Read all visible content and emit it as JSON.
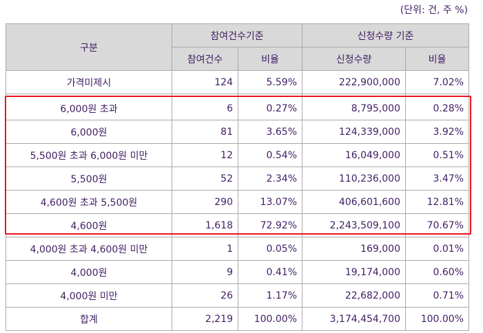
{
  "unit_note": "(단위: 건, 주 %)",
  "headers": {
    "category": "구분",
    "by_participants": "참여건수기준",
    "by_quantity": "신청수량 기준",
    "participants": "참여건수",
    "participants_ratio": "비율",
    "quantity": "신청수량",
    "quantity_ratio": "비율"
  },
  "rows": [
    {
      "category": "가격미제시",
      "participants": "124",
      "participants_ratio": "5.59%",
      "quantity": "222,900,000",
      "quantity_ratio": "7.02%"
    },
    {
      "category": "6,000원 초과",
      "participants": "6",
      "participants_ratio": "0.27%",
      "quantity": "8,795,000",
      "quantity_ratio": "0.28%"
    },
    {
      "category": "6,000원",
      "participants": "81",
      "participants_ratio": "3.65%",
      "quantity": "124,339,000",
      "quantity_ratio": "3.92%"
    },
    {
      "category": "5,500원 초과 6,000원 미만",
      "participants": "12",
      "participants_ratio": "0.54%",
      "quantity": "16,049,000",
      "quantity_ratio": "0.51%"
    },
    {
      "category": "5,500원",
      "participants": "52",
      "participants_ratio": "2.34%",
      "quantity": "110,236,000",
      "quantity_ratio": "3.47%"
    },
    {
      "category": "4,600원 초과 5,500원",
      "participants": "290",
      "participants_ratio": "13.07%",
      "quantity": "406,601,600",
      "quantity_ratio": "12.81%"
    },
    {
      "category": "4,600원",
      "participants": "1,618",
      "participants_ratio": "72.92%",
      "quantity": "2,243,509,100",
      "quantity_ratio": "70.67%"
    },
    {
      "category": "4,000원 초과 4,600원 미만",
      "participants": "1",
      "participants_ratio": "0.05%",
      "quantity": "169,000",
      "quantity_ratio": "0.01%"
    },
    {
      "category": "4,000원",
      "participants": "9",
      "participants_ratio": "0.41%",
      "quantity": "19,174,000",
      "quantity_ratio": "0.60%"
    },
    {
      "category": "4,000원 미만",
      "participants": "26",
      "participants_ratio": "1.17%",
      "quantity": "22,682,000",
      "quantity_ratio": "0.71%"
    },
    {
      "category": "합계",
      "participants": "2,219",
      "participants_ratio": "100.00%",
      "quantity": "3,174,454,700",
      "quantity_ratio": "100.00%"
    }
  ],
  "colors": {
    "text": "#3f1d63",
    "header_bg": "#d9d9d9",
    "border": "#a9a9a9",
    "highlight_border": "#e8141f"
  }
}
